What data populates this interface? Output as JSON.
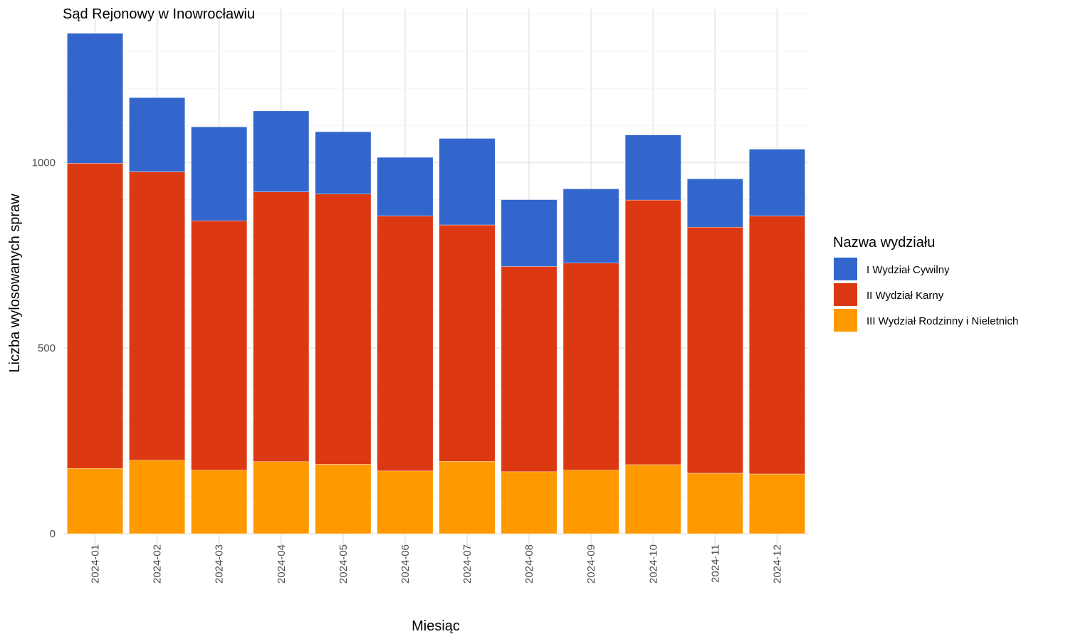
{
  "chart_data": {
    "type": "bar",
    "stacked": true,
    "title": "Sąd Rejonowy w Inowrocławiu",
    "xlabel": "Miesiąc",
    "ylabel": "Liczba wylosowanych spraw",
    "ylim": [
      0,
      1400
    ],
    "yticks": [
      0,
      500,
      1000
    ],
    "grid": true,
    "legend_title": "Nazwa wydziału",
    "legend_position": "right",
    "categories": [
      "2024-01",
      "2024-02",
      "2024-03",
      "2024-04",
      "2024-05",
      "2024-06",
      "2024-07",
      "2024-08",
      "2024-09",
      "2024-10",
      "2024-11",
      "2024-12"
    ],
    "series": [
      {
        "name": "I Wydział Cywilny",
        "color": "#3366CC",
        "values": [
          350,
          200,
          253,
          218,
          168,
          158,
          233,
          180,
          200,
          175,
          130,
          180
        ]
      },
      {
        "name": "II Wydział Karny",
        "color": "#DC3912",
        "values": [
          822,
          777,
          672,
          727,
          728,
          687,
          637,
          553,
          558,
          713,
          663,
          695
        ]
      },
      {
        "name": "III Wydział Rodzinny i Nieletnich",
        "color": "#FF9900",
        "values": [
          176,
          198,
          171,
          194,
          187,
          169,
          195,
          167,
          171,
          186,
          163,
          161
        ]
      }
    ]
  }
}
